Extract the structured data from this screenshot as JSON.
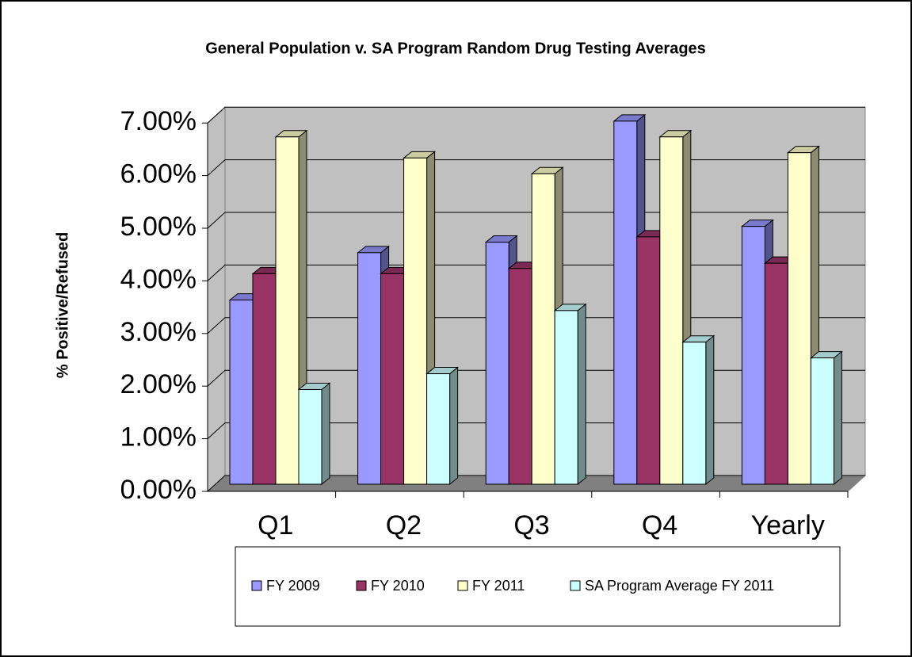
{
  "chart_data": {
    "type": "bar3d",
    "title": "General Population v. SA Program Random Drug Testing Averages",
    "ylabel": "% Positive/Refused",
    "categories": [
      "Q1",
      "Q2",
      "Q3",
      "Q4",
      "Yearly"
    ],
    "series": [
      {
        "name": "FY 2009",
        "color": "#9999ff",
        "values": [
          3.5,
          4.4,
          4.6,
          6.9,
          4.9
        ]
      },
      {
        "name": "FY 2010",
        "color": "#993366",
        "values": [
          4.0,
          4.0,
          4.1,
          4.7,
          4.2
        ]
      },
      {
        "name": "FY 2011",
        "color": "#ffffcc",
        "values": [
          6.6,
          6.2,
          5.9,
          6.6,
          6.3
        ]
      },
      {
        "name": "SA Program Average FY 2011",
        "color": "#ccffff",
        "values": [
          1.8,
          2.1,
          3.3,
          2.7,
          2.4
        ]
      }
    ],
    "ylim": [
      0,
      7
    ],
    "yticks": [
      {
        "value": 0,
        "label": "0.00%"
      },
      {
        "value": 1,
        "label": "1.00%"
      },
      {
        "value": 2,
        "label": "2.00%"
      },
      {
        "value": 3,
        "label": "3.00%"
      },
      {
        "value": 4,
        "label": "4.00%"
      },
      {
        "value": 5,
        "label": "5.00%"
      },
      {
        "value": 6,
        "label": "6.00%"
      },
      {
        "value": 7,
        "label": "7.00%"
      }
    ],
    "grid": true,
    "legend": "bottom"
  }
}
